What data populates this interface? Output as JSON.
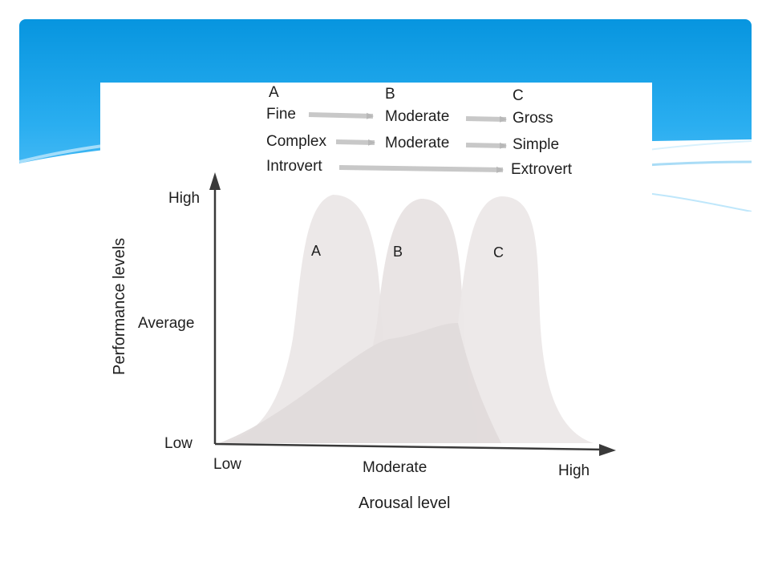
{
  "slide": {
    "header_color": "#0795df",
    "header_light": "#5dc3f8"
  },
  "diagram": {
    "columns": [
      {
        "letter": "A",
        "skill": "Fine",
        "task": "Complex",
        "personality": "Introvert"
      },
      {
        "letter": "B",
        "skill": "Moderate",
        "task": "Moderate",
        "personality": ""
      },
      {
        "letter": "C",
        "skill": "Gross",
        "task": "Simple",
        "personality": "Extrovert"
      }
    ],
    "curves": [
      {
        "label": "A"
      },
      {
        "label": "B"
      },
      {
        "label": "C"
      }
    ],
    "y_axis": {
      "title": "Performance levels",
      "ticks": [
        "High",
        "Average",
        "Low"
      ]
    },
    "x_axis": {
      "title": "Arousal level",
      "ticks": [
        "Low",
        "Moderate",
        "High"
      ]
    },
    "colors": {
      "curve_fill": "#ede9e9",
      "overlap_fill": "#e0dada",
      "arrow": "#c8c8c8",
      "axis": "#3a3a3a"
    }
  }
}
